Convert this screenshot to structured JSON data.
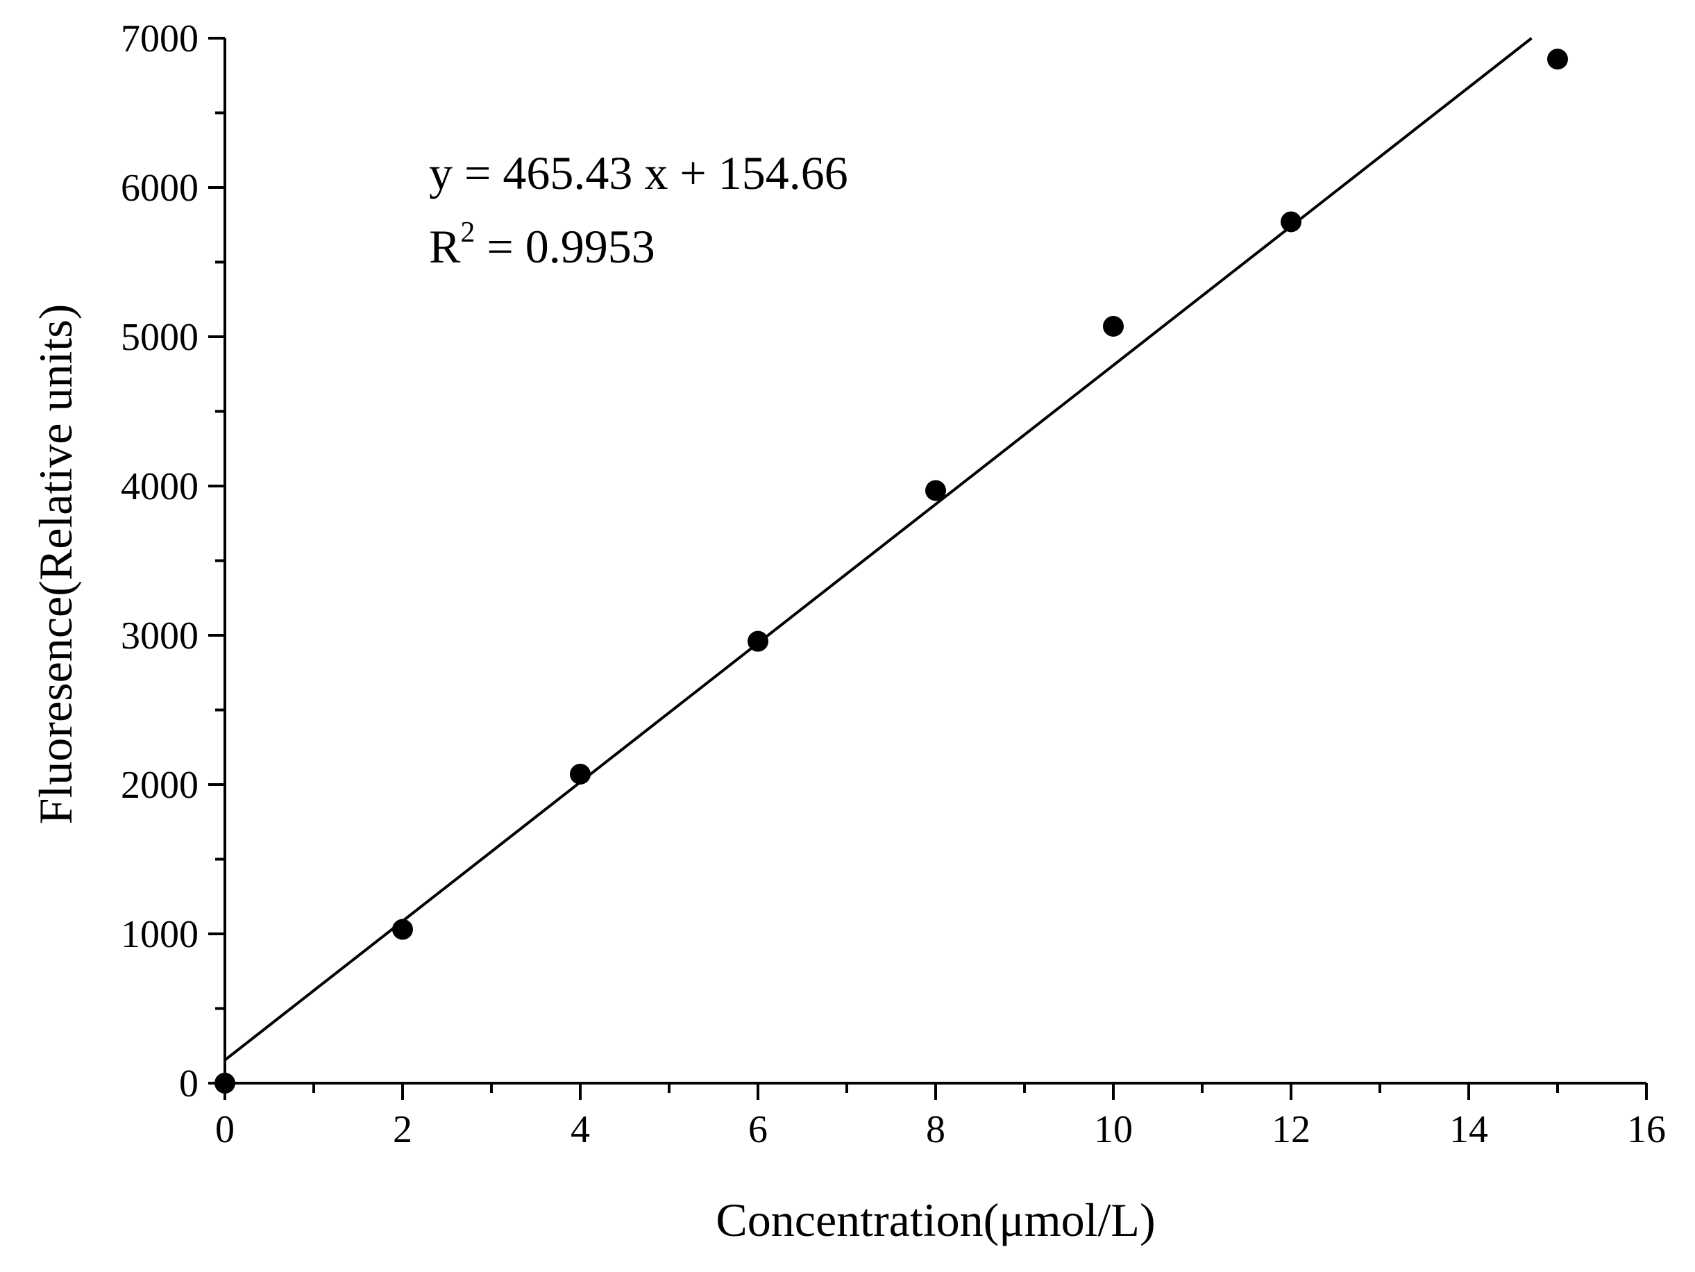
{
  "chart_data": {
    "type": "scatter",
    "title": "",
    "xlabel": "Concentration(μmol/L)",
    "ylabel": "Fluoresence(Relative units)",
    "xlim": [
      0,
      16
    ],
    "ylim": [
      0,
      7000
    ],
    "x_ticks": [
      "0",
      "2",
      "4",
      "6",
      "8",
      "10",
      "12",
      "14",
      "16"
    ],
    "y_ticks": [
      "0",
      "1000",
      "2000",
      "3000",
      "4000",
      "5000",
      "6000",
      "7000"
    ],
    "grid": false,
    "legend": "none",
    "series": [
      {
        "x": [
          0,
          2,
          4,
          6,
          8,
          10,
          12,
          15
        ],
        "y": [
          0,
          1030,
          2070,
          2960,
          3970,
          5070,
          5770,
          6860
        ]
      }
    ],
    "fit": {
      "slope": 465.43,
      "intercept": 154.66
    },
    "annotations": {
      "equation": "y = 465.43 x + 154.66",
      "r2_prefix": "R",
      "r2_sup": "2",
      "r2_suffix": " = 0.9953"
    },
    "colors": {
      "marker": "#000000",
      "line": "#000000",
      "axis": "#000000"
    }
  }
}
